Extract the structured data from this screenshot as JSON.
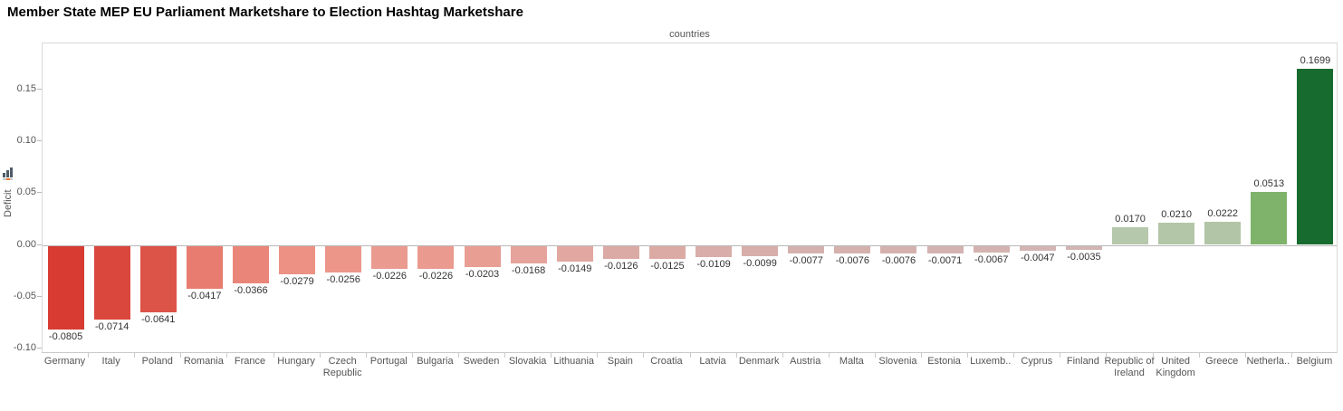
{
  "page": {
    "title": "Member State MEP EU Parliament Marketshare to Election Hashtag Marketshare"
  },
  "chart_data": {
    "type": "bar",
    "title": "Member State MEP EU Parliament Marketshare to Election Hashtag Marketshare",
    "top_axis_label": "countries",
    "xlabel": "countries",
    "ylabel": "Deficit",
    "ylabel_icon": "mini-bar-chart-icon",
    "ylim": [
      -0.105,
      0.195
    ],
    "grid": "zero-line-only",
    "legend": "none",
    "yticks": [
      {
        "value": 0.15,
        "label": "0.15"
      },
      {
        "value": 0.1,
        "label": "0.10"
      },
      {
        "value": 0.05,
        "label": "0.05"
      },
      {
        "value": 0.0,
        "label": "0.00"
      },
      {
        "value": -0.05,
        "label": "-0.05"
      },
      {
        "value": -0.1,
        "label": "-0.10"
      }
    ],
    "bars": [
      {
        "category": "Germany",
        "value": -0.0805,
        "label": "-0.0805",
        "color": "#d73b32"
      },
      {
        "category": "Italy",
        "value": -0.0714,
        "label": "-0.0714",
        "color": "#da473c"
      },
      {
        "category": "Poland",
        "value": -0.0641,
        "label": "-0.0641",
        "color": "#dc5347"
      },
      {
        "category": "Romania",
        "value": -0.0417,
        "label": "-0.0417",
        "color": "#e87c70"
      },
      {
        "category": "France",
        "value": -0.0366,
        "label": "-0.0366",
        "color": "#ea8579"
      },
      {
        "category": "Hungary",
        "value": -0.0279,
        "label": "-0.0279",
        "color": "#ec9184"
      },
      {
        "category": "Czech Republic",
        "value": -0.0256,
        "label": "-0.0256",
        "color": "#ec968a"
      },
      {
        "category": "Portugal",
        "value": -0.0226,
        "label": "-0.0226",
        "color": "#eb9a8f"
      },
      {
        "category": "Bulgaria",
        "value": -0.0226,
        "label": "-0.0226",
        "color": "#eb9a8f"
      },
      {
        "category": "Sweden",
        "value": -0.0203,
        "label": "-0.0203",
        "color": "#e99e94"
      },
      {
        "category": "Slovakia",
        "value": -0.0168,
        "label": "-0.0168",
        "color": "#e5a39b"
      },
      {
        "category": "Lithuania",
        "value": -0.0149,
        "label": "-0.0149",
        "color": "#e1a7a0"
      },
      {
        "category": "Spain",
        "value": -0.0126,
        "label": "-0.0126",
        "color": "#dcaaa5"
      },
      {
        "category": "Croatia",
        "value": -0.0125,
        "label": "-0.0125",
        "color": "#dcaaa5"
      },
      {
        "category": "Latvia",
        "value": -0.0109,
        "label": "-0.0109",
        "color": "#d9adaa"
      },
      {
        "category": "Denmark",
        "value": -0.0099,
        "label": "-0.0099",
        "color": "#d8aeab"
      },
      {
        "category": "Austria",
        "value": -0.0077,
        "label": "-0.0077",
        "color": "#d5b1ae"
      },
      {
        "category": "Malta",
        "value": -0.0076,
        "label": "-0.0076",
        "color": "#d5b1ae"
      },
      {
        "category": "Slovenia",
        "value": -0.0076,
        "label": "-0.0076",
        "color": "#d5b1ae"
      },
      {
        "category": "Estonia",
        "value": -0.0071,
        "label": "-0.0071",
        "color": "#d4b2b0"
      },
      {
        "category": "Luxemb..",
        "value": -0.0067,
        "label": "-0.0067",
        "color": "#d4b2b0"
      },
      {
        "category": "Cyprus",
        "value": -0.0047,
        "label": "-0.0047",
        "color": "#d2b4b2"
      },
      {
        "category": "Finland",
        "value": -0.0035,
        "label": "-0.0035",
        "color": "#d1b5b3"
      },
      {
        "category": "Republic of Ireland",
        "value": 0.017,
        "label": "0.0170",
        "color": "#b6c8ab"
      },
      {
        "category": "United Kingdom",
        "value": 0.021,
        "label": "0.0210",
        "color": "#b3c6a7"
      },
      {
        "category": "Greece",
        "value": 0.0222,
        "label": "0.0222",
        "color": "#b2c5a6"
      },
      {
        "category": "Netherla..",
        "value": 0.0513,
        "label": "0.0513",
        "color": "#7fb36b"
      },
      {
        "category": "Belgium",
        "value": 0.1699,
        "label": "0.1699",
        "color": "#176b2e"
      }
    ]
  }
}
